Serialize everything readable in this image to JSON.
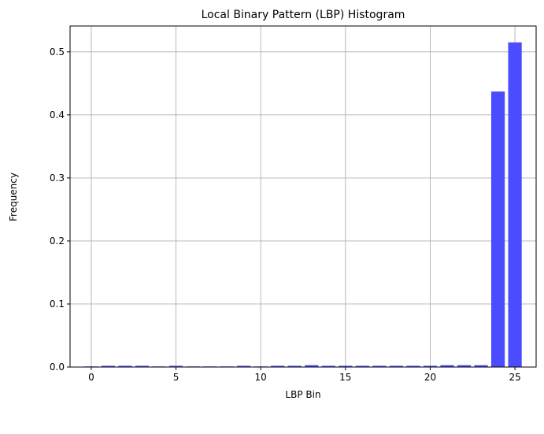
{
  "chart_data": {
    "type": "bar",
    "title": "Local Binary Pattern (LBP) Histogram",
    "xlabel": "LBP Bin",
    "ylabel": "Frequency",
    "x": [
      0,
      1,
      2,
      3,
      4,
      5,
      6,
      7,
      8,
      9,
      10,
      11,
      12,
      13,
      14,
      15,
      16,
      17,
      18,
      19,
      20,
      21,
      22,
      23,
      24,
      25
    ],
    "values": [
      0.001,
      0.002,
      0.002,
      0.002,
      0.001,
      0.002,
      0.001,
      0.001,
      0.001,
      0.002,
      0.001,
      0.002,
      0.002,
      0.003,
      0.002,
      0.002,
      0.002,
      0.002,
      0.002,
      0.002,
      0.002,
      0.003,
      0.003,
      0.003,
      0.437,
      0.515
    ],
    "xlim": [
      -1.25,
      26.25
    ],
    "ylim": [
      0,
      0.541
    ],
    "xticks": [
      0,
      5,
      10,
      15,
      20,
      25
    ],
    "yticks": [
      0.0,
      0.1,
      0.2,
      0.3,
      0.4,
      0.5
    ],
    "xtick_labels": [
      "0",
      "5",
      "10",
      "15",
      "20",
      "25"
    ],
    "ytick_labels": [
      "0.0",
      "0.1",
      "0.2",
      "0.3",
      "0.4",
      "0.5"
    ],
    "grid": true,
    "bar_color": "#4b4bff",
    "grid_color": "#b0b0b0"
  }
}
